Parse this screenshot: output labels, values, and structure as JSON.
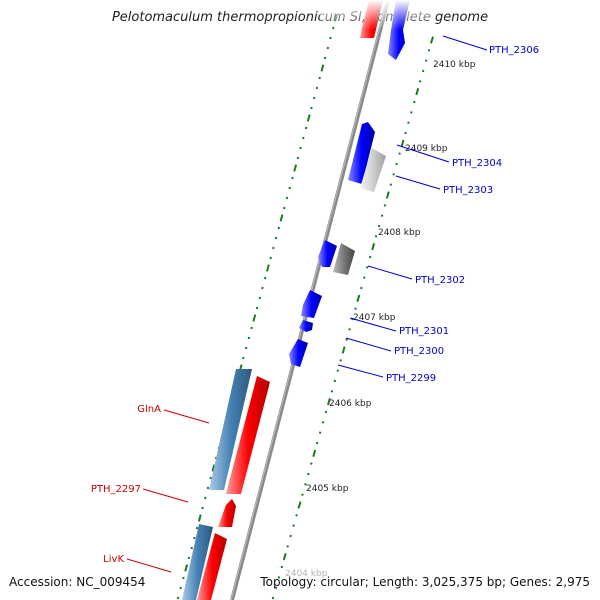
{
  "title": "Pelotomaculum thermopropionicum SI, complete genome",
  "accession": "Accession: NC_009454",
  "topology": "Topology: circular; Length: 3,025,375 bp; Genes: 2,975",
  "kbp_labels": [
    "2410 kbp",
    "2409 kbp",
    "2408 kbp",
    "2407 kbp",
    "2406 kbp",
    "2405 kbp",
    "2404 kbp"
  ],
  "gene_labels_right": [
    "PTH_2306",
    "PTH_2304",
    "PTH_2303",
    "PTH_2302",
    "PTH_2301",
    "PTH_2300",
    "PTH_2299"
  ],
  "gene_labels_left": [
    "GlnA",
    "PTH_2297",
    "LivK"
  ],
  "colors": {
    "forward_gene": "#0000ee",
    "reverse_gene": "#ee0000",
    "rrna_gene": "#4682b4",
    "other_gene": "#888888",
    "pseudo_gene": "#cccccc",
    "backbone": "#888888",
    "tick": "#1a7a1a",
    "label_blue": "#0000cc",
    "label_red": "#cc0000"
  }
}
